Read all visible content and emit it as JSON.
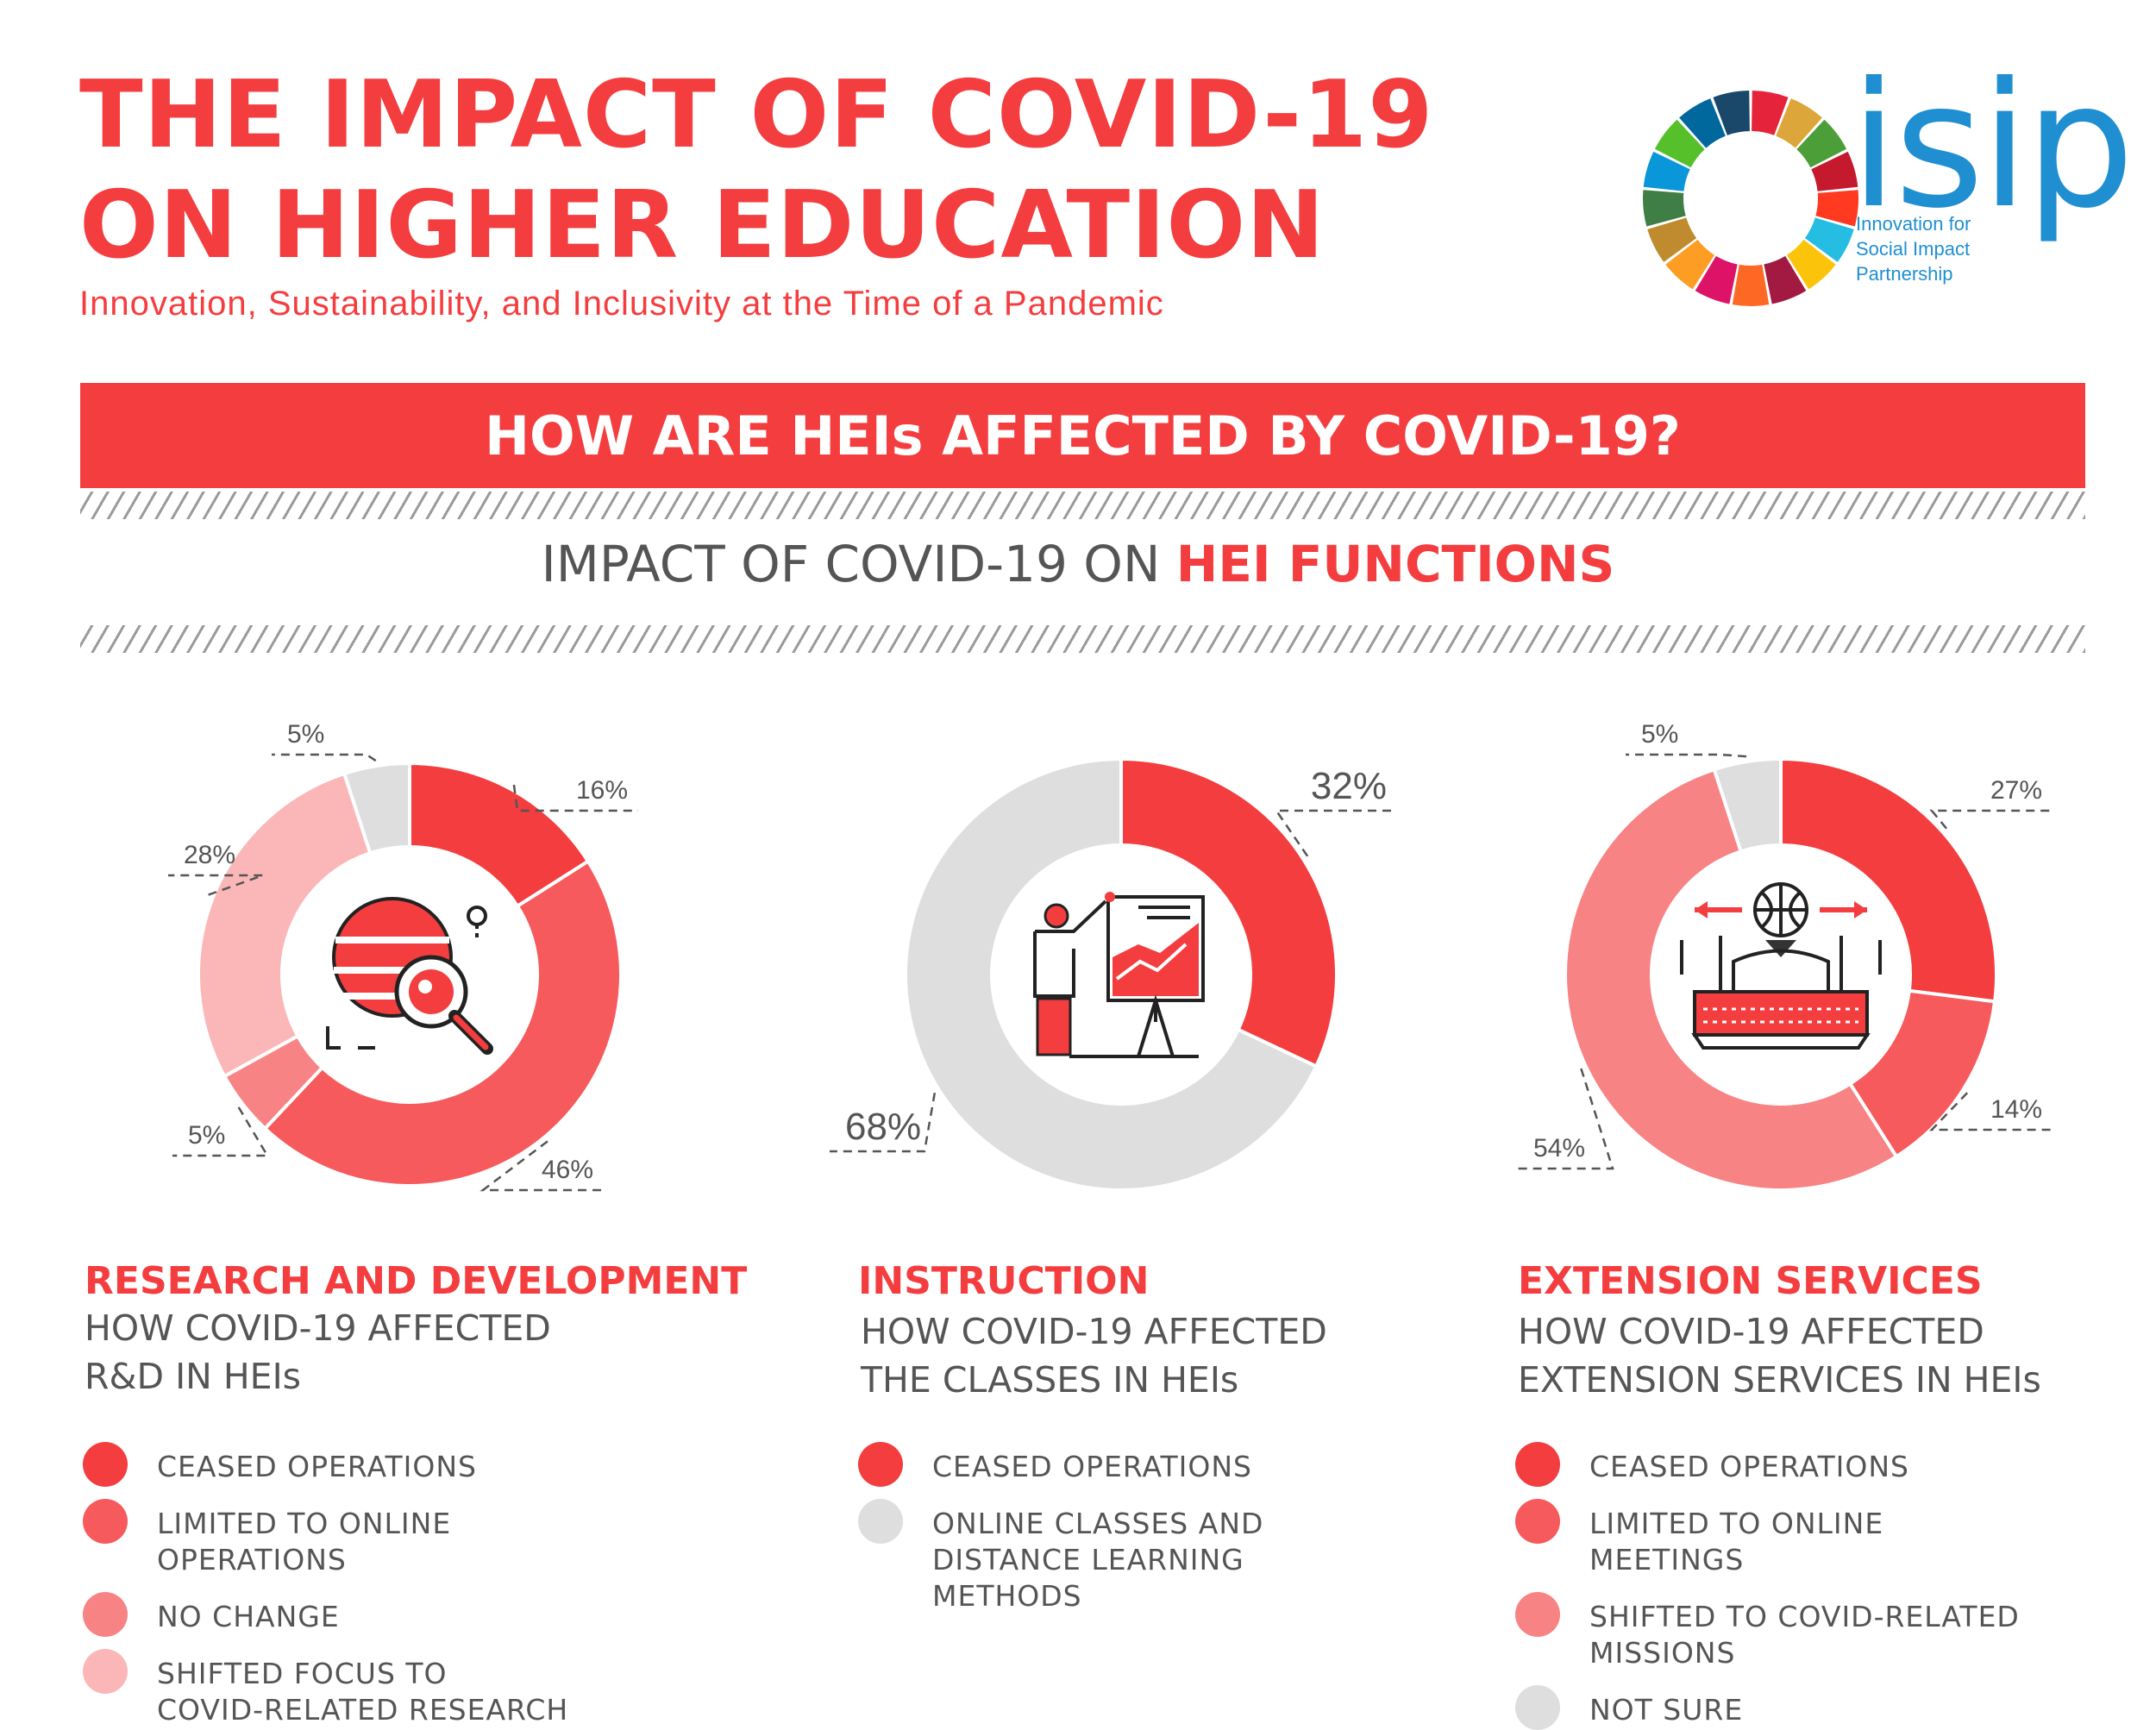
{
  "header": {
    "title_line1": "THE IMPACT OF COVID-19",
    "title_line2": "ON HIGHER EDUCATION",
    "subtitle": "Innovation, Sustainability, and Inclusivity at the Time of a Pandemic"
  },
  "logo": {
    "word": "isip",
    "tagline_line1": "Innovation for",
    "tagline_line2": "Social Impact",
    "tagline_line3": "Partnership",
    "ring_colors": [
      "#e5243b",
      "#dda63a",
      "#4c9f38",
      "#c5192d",
      "#ff3a21",
      "#26bde2",
      "#fcc30b",
      "#a21942",
      "#fd6925",
      "#dd1367",
      "#fd9d24",
      "#bf8b2e",
      "#3f7e44",
      "#0a97d9",
      "#56c02b",
      "#00689d",
      "#19486a"
    ]
  },
  "banner": {
    "text": "HOW ARE HEIs AFFECTED BY COVID-19?"
  },
  "section": {
    "title_plain": "IMPACT OF COVID-19 ON ",
    "title_accent": "HEI FUNCTIONS"
  },
  "colors": {
    "accent": "#f43d3f",
    "gray_text": "#555555"
  },
  "chart_data": [
    {
      "type": "pie",
      "title": "RESEARCH AND DEVELOPMENT",
      "subtitle_line1": "HOW COVID-19 AFFECTED",
      "subtitle_line2": "R&D IN HEIs",
      "icon": "globe-magnifier-icon",
      "slices": [
        {
          "label": "CEASED OPERATIONS",
          "value": 16,
          "color": "#f43d3f"
        },
        {
          "label": "LIMITED TO ONLINE\nOPERATIONS",
          "value": 46,
          "color": "#f65a5c"
        },
        {
          "label": "NO CHANGE",
          "value": 5,
          "color": "#f88384"
        },
        {
          "label": "SHIFTED FOCUS TO\nCOVID-RELATED RESEARCH",
          "value": 28,
          "color": "#fbb7b8"
        },
        {
          "label": "",
          "value": 5,
          "color": "#dedede"
        }
      ],
      "value_labels": [
        "16%",
        "46%",
        "5%",
        "28%",
        "5%"
      ]
    },
    {
      "type": "pie",
      "title": "INSTRUCTION",
      "subtitle_line1": "HOW COVID-19 AFFECTED",
      "subtitle_line2": "THE CLASSES IN HEIs",
      "icon": "teacher-presentation-icon",
      "slices": [
        {
          "label": "CEASED OPERATIONS",
          "value": 32,
          "color": "#f43d3f"
        },
        {
          "label": "ONLINE CLASSES AND\nDISTANCE LEARNING\nMETHODS",
          "value": 68,
          "color": "#dedede"
        }
      ],
      "value_labels": [
        "32%",
        "68%"
      ]
    },
    {
      "type": "pie",
      "title": "EXTENSION SERVICES",
      "subtitle_line1": "HOW COVID-19 AFFECTED",
      "subtitle_line2": "EXTENSION SERVICES IN HEIs",
      "icon": "laptop-person-icon",
      "slices": [
        {
          "label": "CEASED OPERATIONS",
          "value": 27,
          "color": "#f43d3f"
        },
        {
          "label": "LIMITED TO ONLINE\nMEETINGS",
          "value": 14,
          "color": "#f65a5c"
        },
        {
          "label": "SHIFTED TO COVID-RELATED\nMISSIONS",
          "value": 54,
          "color": "#f88384"
        },
        {
          "label": "NOT SURE",
          "value": 5,
          "color": "#dedede"
        }
      ],
      "value_labels": [
        "27%",
        "14%",
        "54%",
        "5%"
      ]
    }
  ]
}
